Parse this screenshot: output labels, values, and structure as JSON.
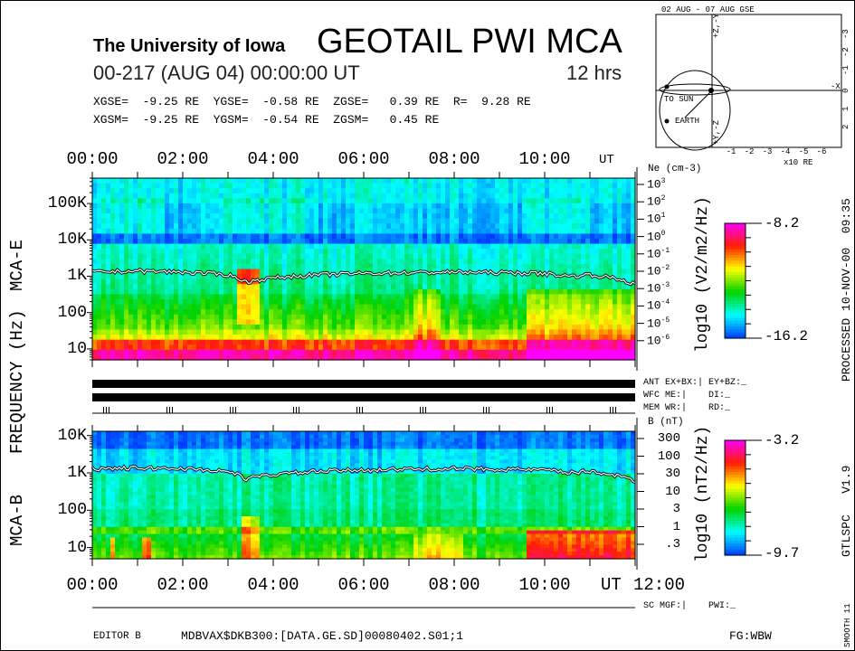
{
  "header": {
    "institution": "The University of Iowa",
    "title": "GEOTAIL PWI MCA",
    "date_line": "00-217 (AUG 04) 00:00:00 UT",
    "duration": "12 hrs",
    "coords_gse": "XGSE=  -9.25 RE  YGSE=  -0.58 RE  ZGSE=   0.39 RE  R=  9.28 RE",
    "coords_gsm": "XGSM=  -9.25 RE  YGSM=  -0.54 RE  ZGSM=   0.45 RE"
  },
  "orbit": {
    "title": "02 AUG - 07 AUG  GSE",
    "label_top": "+Z,-Y",
    "label_bottom": "+Y,-Z",
    "label_x": "-X",
    "to_sun": "TO SUN",
    "earth": "EARTH",
    "x_ticks": [
      "-1",
      "-2",
      "-3",
      "-4",
      "-5",
      "-6"
    ],
    "y_ticks": [
      "-3",
      "-2",
      "-1",
      "0",
      "1",
      "2"
    ],
    "unit": "x10 RE"
  },
  "chart_data": [
    {
      "type": "heatmap",
      "name": "MCA-E",
      "title": "",
      "xlabel": "UT",
      "ylabel": "FREQUENCY (Hz)",
      "x_ticks": [
        "00:00",
        "02:00",
        "04:00",
        "06:00",
        "08:00",
        "10:00"
      ],
      "xlim_hours": [
        0,
        12
      ],
      "y_scale": "log",
      "y_ticks": [
        "100K",
        "10K",
        "1K",
        "100",
        "10"
      ],
      "ylim_hz": [
        5,
        500000
      ],
      "right_axis": {
        "label": "Ne (cm-3)",
        "ticks": [
          "10^3",
          "10^2",
          "10^1",
          "10^0",
          "10^-1",
          "10^-2",
          "10^-3",
          "10^-4",
          "10^-5",
          "10^-6"
        ]
      },
      "colorbar": {
        "label": "log10 (V2/m2/Hz)",
        "max": "-8.2",
        "min": "-16.2"
      },
      "overlay_line_hz": {
        "hours": [
          0,
          1,
          2,
          3,
          3.4,
          4,
          5,
          6,
          7,
          8,
          9,
          10,
          10.5,
          11,
          11.5,
          12
        ],
        "values": [
          1300,
          1400,
          1300,
          1100,
          700,
          900,
          1100,
          1200,
          1250,
          1300,
          1250,
          1200,
          1000,
          1100,
          900,
          600
        ]
      },
      "features": "intense emission below 20 Hz all interval; enhancements 07:10-07:45 and 09:40-12:00; red burst near 1 kHz at 03:20-03:40; dark band near 10 kHz"
    },
    {
      "type": "heatmap",
      "name": "MCA-B",
      "xlabel": "UT",
      "x_ticks": [
        "00:00",
        "02:00",
        "04:00",
        "06:00",
        "08:00",
        "10:00",
        "12:00"
      ],
      "xlim_hours": [
        0,
        12
      ],
      "y_scale": "log",
      "y_ticks": [
        "10K",
        "1K",
        "100",
        "10"
      ],
      "ylim_hz": [
        5,
        13000
      ],
      "right_axis": {
        "label": "B (nT)",
        "ticks": [
          "300",
          "100",
          "30",
          "10",
          "3",
          "1",
          ".3"
        ]
      },
      "colorbar": {
        "label": "log10 (nT2/Hz)",
        "max": "-3.2",
        "min": "-9.7"
      },
      "overlay_line_hz": {
        "hours": [
          0,
          1,
          2,
          3,
          3.4,
          4,
          5,
          6,
          7,
          8,
          9,
          10,
          10.5,
          11,
          11.5,
          12
        ],
        "values": [
          1300,
          1350,
          1300,
          1100,
          700,
          900,
          1100,
          1200,
          1250,
          1300,
          1250,
          1200,
          1000,
          1100,
          900,
          600
        ]
      }
    }
  ],
  "axis": {
    "ut": "UT",
    "end_label": "12:00",
    "freq_label": "FREQUENCY (Hz)",
    "panel_e": "MCA-E",
    "panel_b": "MCA-B"
  },
  "status": {
    "ant": "ANT EX+BX:| EY+BZ:_",
    "wfc": "WFC ME:|    DI:_",
    "mem": "MEM WR:|    RD:_",
    "sc": "SC MGF:|    PWI:_"
  },
  "side": {
    "processed": "PROCESSED 10-NOV-00  09:35",
    "version": "GTLSPC   V1.9",
    "smooth": "SMOOTH 11"
  },
  "footer": {
    "editor": "EDITOR B",
    "path": "MDBVAX$DKB300:[DATA.GE.SD]00080402.S01;1",
    "fg": "FG:WBW"
  },
  "colors": {
    "low": "#0050ff",
    "c1": "#00ffff",
    "c2": "#00dd00",
    "c3": "#ffff00",
    "c4": "#ff2000",
    "high": "#ff00ff"
  }
}
